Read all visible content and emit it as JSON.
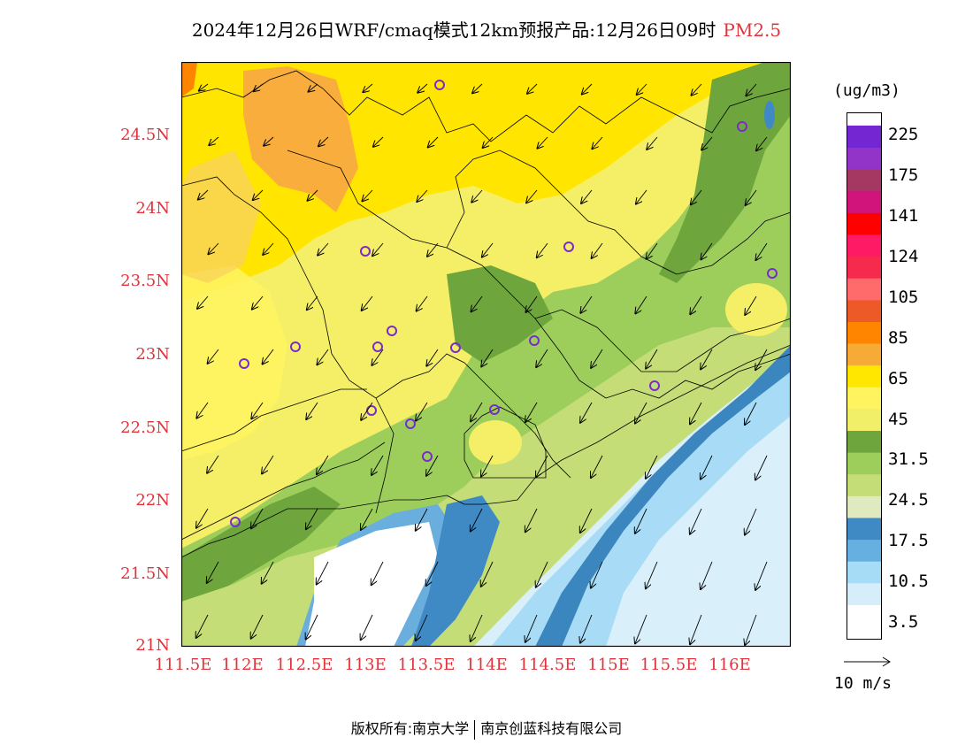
{
  "header": {
    "title": "2024年12月26日WRF/cmaq模式12km预报产品:12月26日09时",
    "parameter": "PM2.5"
  },
  "map": {
    "lat_ticks": [
      "24.5N",
      "24N",
      "23.5N",
      "23N",
      "22.5N",
      "22N",
      "21.5N",
      "21N"
    ],
    "lon_ticks": [
      "111.5E",
      "112E",
      "112.5E",
      "113E",
      "113.5E",
      "114E",
      "114.5E",
      "115E",
      "115.5E",
      "116E"
    ],
    "colors": {
      "land_orange": "#f8ad3c",
      "land_yellow": "#ffe500",
      "land_light_yellow": "#f4ef66",
      "green_dark": "#6fa83a",
      "green_mid": "#8cc44e",
      "green_light": "#c2dc79",
      "blue_dark": "#3c86c0",
      "blue_mid": "#6aaede",
      "blue_light": "#a8dbf5",
      "sea_pale": "#d9effa"
    }
  },
  "legend": {
    "unit": "(ug/m3)",
    "labels": [
      "225",
      "175",
      "141",
      "124",
      "105",
      "85",
      "65",
      "45",
      "31.5",
      "24.5",
      "17.5",
      "10.5",
      "3.5"
    ],
    "colors": [
      "#ffffff",
      "#d6eef9",
      "#a6dcf6",
      "#65b0e0",
      "#3f8ac4",
      "#dfeac0",
      "#c4dd77",
      "#9dce5c",
      "#6ea63d",
      "#f1ef67",
      "#fff35f",
      "#ffe700",
      "#f6ab37",
      "#ff8400",
      "#ee5a27",
      "#ff6b6b",
      "#f52a4d",
      "#ff1a66",
      "#ff0000",
      "#d0147c",
      "#a53862",
      "#9334c9",
      "#7426d3"
    ]
  },
  "wind_reference": {
    "label": "10 m/s"
  },
  "footer": {
    "copyright_left": "版权所有:南京大学",
    "copyright_right": "南京创蓝科技有限公司"
  }
}
